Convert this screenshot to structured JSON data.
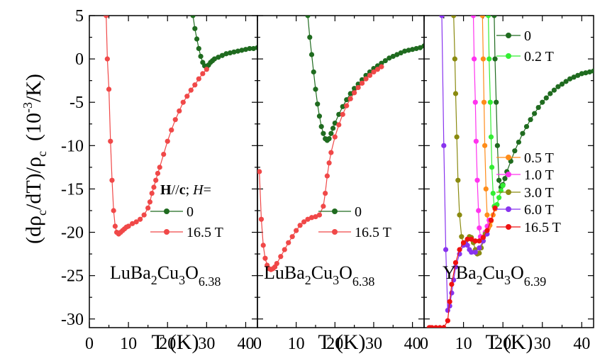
{
  "y_axis_title": {
    "a": "(dρ",
    "b": "c",
    "c": "/dT)/ρ",
    "d": "c",
    "e": "(10",
    "f": "-3",
    "g": "/K)"
  },
  "colors": {
    "dark_green": "#1f6b1f",
    "red": "#f04848",
    "light_green": "#33ee33",
    "orange": "#ff8c1a",
    "magenta": "#ff33ee",
    "olive": "#8a8a10",
    "violet": "#8833ee",
    "bright_red": "#ee1111"
  },
  "chart_data": [
    {
      "type": "line",
      "panel": "left",
      "xlabel": "T (K)",
      "xlim": [
        0,
        43
      ],
      "ylim": [
        -31,
        5
      ],
      "xticks": [
        "0",
        "10",
        "20",
        "30",
        "40"
      ],
      "yticks": [
        "5",
        "0",
        "-5",
        "-10",
        "-15",
        "-20",
        "-25",
        "-30"
      ],
      "legend_title": {
        "H": "H",
        "sep": "//",
        "c": "c",
        "semi": "; ",
        "Hi": "H",
        "eq": "="
      },
      "compound": {
        "base1": "LuBa",
        "s1": "2",
        "base2": "Cu",
        "s2": "3",
        "base3": "O",
        "s3": "6.38"
      },
      "series": [
        {
          "name": "0",
          "color": "#1f6b1f",
          "x": [
            26.5,
            27.0,
            27.5,
            28.0,
            28.5,
            29.0,
            29.5,
            30.0,
            30.5,
            31.0,
            31.5,
            32.0,
            33.0,
            34.0,
            35.0,
            36.0,
            37.0,
            38.0,
            39.0,
            40.0,
            41.0,
            42.0,
            43.0
          ],
          "y": [
            5.0,
            3.5,
            2.3,
            1.2,
            0.3,
            -0.4,
            -0.8,
            -1.0,
            -0.7,
            -0.4,
            -0.2,
            0.0,
            0.2,
            0.4,
            0.6,
            0.7,
            0.8,
            0.9,
            1.0,
            1.1,
            1.2,
            1.2,
            1.3
          ]
        },
        {
          "name": "16.5 T",
          "color": "#f04848",
          "x": [
            4.3,
            4.6,
            5.0,
            5.4,
            5.8,
            6.2,
            6.6,
            7.0,
            7.5,
            8.0,
            8.5,
            9.0,
            9.5,
            10.0,
            11.0,
            12.0,
            13.0,
            14.0,
            15.0,
            15.5,
            16.0,
            16.5,
            17.0,
            17.5,
            18.0,
            19.0,
            20.0,
            21.0,
            22.0,
            23.0,
            24.0,
            25.0,
            26.0,
            27.0,
            28.0,
            29.0,
            30.0
          ],
          "y": [
            5.0,
            0.0,
            -3.5,
            -9.5,
            -14.0,
            -17.5,
            -19.3,
            -20.0,
            -20.2,
            -20.0,
            -19.8,
            -19.6,
            -19.4,
            -19.3,
            -19.0,
            -18.8,
            -18.5,
            -18.0,
            -17.2,
            -16.5,
            -15.5,
            -14.8,
            -14.0,
            -13.2,
            -12.5,
            -11.0,
            -9.5,
            -8.2,
            -7.0,
            -6.0,
            -5.0,
            -4.3,
            -3.6,
            -3.0,
            -2.3,
            -1.7,
            -1.2
          ]
        }
      ]
    },
    {
      "type": "line",
      "panel": "middle",
      "xlabel": "T (K)",
      "xlim": [
        0,
        43
      ],
      "ylim": [
        -31,
        5
      ],
      "xticks": [
        "0",
        "10",
        "20",
        "30",
        "40"
      ],
      "compound": {
        "base1": "LuBa",
        "s1": "2",
        "base2": "Cu",
        "s2": "3",
        "base3": "O",
        "s3": "6.38"
      },
      "series": [
        {
          "name": "0",
          "color": "#1f6b1f",
          "x": [
            13.0,
            13.5,
            14.0,
            14.5,
            15.0,
            15.5,
            16.0,
            16.5,
            17.0,
            17.5,
            18.0,
            18.5,
            19.0,
            19.5,
            20.0,
            21.0,
            22.0,
            23.0,
            24.0,
            25.0,
            26.0,
            27.0,
            28.0,
            29.0,
            30.0,
            31.0,
            32.0,
            33.0,
            34.0,
            35.0,
            36.0,
            37.0,
            38.0,
            39.0,
            40.0,
            41.0,
            42.0,
            43.0
          ],
          "y": [
            5.0,
            2.5,
            0.5,
            -1.5,
            -3.5,
            -5.2,
            -6.6,
            -7.8,
            -8.6,
            -9.2,
            -9.4,
            -9.2,
            -8.6,
            -8.0,
            -7.4,
            -6.4,
            -5.5,
            -4.7,
            -4.0,
            -3.4,
            -2.9,
            -2.4,
            -1.9,
            -1.5,
            -1.1,
            -0.8,
            -0.5,
            -0.2,
            0.1,
            0.3,
            0.5,
            0.7,
            0.9,
            1.0,
            1.1,
            1.2,
            1.3,
            1.5
          ]
        },
        {
          "name": "16.5 T",
          "color": "#f04848",
          "x": [
            0.5,
            1.0,
            1.5,
            2.0,
            2.5,
            3.0,
            3.5,
            4.0,
            4.5,
            5.0,
            6.0,
            7.0,
            8.0,
            9.0,
            10.0,
            11.0,
            12.0,
            13.0,
            14.0,
            15.0,
            16.0,
            17.0,
            17.5,
            18.0,
            18.5,
            19.0,
            20.0,
            21.0,
            22.0,
            23.0,
            24.0,
            25.0,
            26.0,
            27.0,
            28.0,
            29.0,
            30.0,
            31.0,
            32.0
          ],
          "y": [
            -13.0,
            -18.5,
            -21.5,
            -23.0,
            -23.8,
            -24.2,
            -24.3,
            -24.2,
            -24.0,
            -23.6,
            -22.8,
            -22.0,
            -21.2,
            -20.5,
            -19.8,
            -19.2,
            -18.8,
            -18.5,
            -18.3,
            -18.2,
            -18.0,
            -17.0,
            -15.5,
            -13.5,
            -12.0,
            -10.8,
            -9.0,
            -7.6,
            -6.4,
            -5.4,
            -4.6,
            -3.9,
            -3.3,
            -2.8,
            -2.3,
            -1.9,
            -1.5,
            -1.2,
            -0.9
          ]
        }
      ]
    },
    {
      "type": "line",
      "panel": "right",
      "xlabel": "T (K)",
      "xlim": [
        0,
        43
      ],
      "ylim": [
        -31,
        5
      ],
      "xticks": [
        "0",
        "10",
        "20",
        "30",
        "40"
      ],
      "compound": {
        "base1": "YBa",
        "s1": "2",
        "base2": "Cu",
        "s2": "3",
        "base3": "O",
        "s3": "6.39"
      },
      "series": [
        {
          "name": "0",
          "color": "#1f6b1f",
          "x": [
            17.8,
            18.0,
            18.3,
            18.6,
            19.0,
            19.5,
            20.0,
            20.5,
            21.0,
            22.0,
            23.0,
            24.0,
            25.0,
            26.0,
            27.0,
            28.0,
            29.0,
            30.0,
            31.0,
            32.0,
            33.0,
            34.0,
            35.0,
            36.0,
            37.0,
            38.0,
            39.0,
            40.0,
            41.0,
            42.0,
            43.0
          ],
          "y": [
            5.0,
            0.0,
            -5.0,
            -10.0,
            -14.0,
            -14.8,
            -14.5,
            -13.8,
            -13.0,
            -11.8,
            -10.6,
            -9.6,
            -8.6,
            -7.8,
            -7.0,
            -6.3,
            -5.6,
            -5.0,
            -4.5,
            -4.0,
            -3.6,
            -3.2,
            -2.9,
            -2.6,
            -2.3,
            -2.1,
            -1.9,
            -1.7,
            -1.6,
            -1.5,
            -1.4
          ]
        },
        {
          "name": "0.2 T",
          "color": "#33ee33",
          "x": [
            16.3,
            16.5,
            16.8,
            17.0,
            17.2,
            17.5,
            17.8,
            18.0,
            18.5,
            19.0,
            19.5,
            20.0
          ],
          "y": [
            5.0,
            0.0,
            -5.0,
            -9.0,
            -12.5,
            -15.5,
            -17.0,
            -17.2,
            -16.8,
            -16.0,
            -15.2,
            -14.6
          ]
        },
        {
          "name": "0.5 T",
          "color": "#ff8c1a",
          "x": [
            14.8,
            15.0,
            15.2,
            15.4,
            15.7,
            16.0,
            16.3,
            16.7,
            17.0,
            17.5,
            18.0
          ],
          "y": [
            5.0,
            0.0,
            -5.0,
            -10.0,
            -15.0,
            -18.0,
            -19.5,
            -19.2,
            -18.7,
            -18.0,
            -17.3
          ]
        },
        {
          "name": "1.0 T",
          "color": "#ff33ee",
          "x": [
            12.5,
            12.7,
            13.0,
            13.2,
            13.5,
            13.8,
            14.0,
            14.3,
            14.7,
            15.0,
            15.5,
            16.0,
            16.5
          ],
          "y": [
            5.0,
            0.0,
            -5.0,
            -9.5,
            -14.0,
            -17.5,
            -19.5,
            -20.5,
            -20.8,
            -20.6,
            -20.0,
            -19.3,
            -18.6
          ]
        },
        {
          "name": "3.0 T",
          "color": "#8a8a10",
          "x": [
            7.5,
            7.8,
            8.0,
            8.3,
            8.6,
            9.0,
            9.5,
            10.0,
            10.5,
            11.0,
            11.5,
            12.0,
            12.5,
            13.0,
            13.5,
            14.0,
            14.5,
            15.0,
            15.5
          ],
          "y": [
            5.0,
            0.0,
            -4.0,
            -9.0,
            -14.0,
            -18.0,
            -20.5,
            -21.3,
            -21.2,
            -20.8,
            -20.5,
            -20.6,
            -21.2,
            -22.0,
            -22.5,
            -22.4,
            -21.8,
            -21.0,
            -20.2
          ]
        },
        {
          "name": "6.0 T",
          "color": "#8833ee",
          "x": [
            4.5,
            5.0,
            5.5,
            6.0,
            6.5,
            7.0,
            7.5,
            8.0,
            9.0,
            10.0,
            10.5,
            11.0,
            11.5,
            12.0,
            13.0,
            14.0,
            15.0,
            16.0
          ],
          "y": [
            5.0,
            -10.0,
            -22.0,
            -29.0,
            -28.5,
            -27.0,
            -25.5,
            -24.0,
            -22.5,
            -21.5,
            -21.3,
            -21.5,
            -22.0,
            -22.3,
            -22.3,
            -21.8,
            -21.0,
            -20.2
          ]
        },
        {
          "name": "16.5 T",
          "color": "#ee1111",
          "x": [
            1.3,
            1.5,
            2.0,
            3.0,
            4.0,
            5.0,
            6.0,
            6.5,
            7.0,
            8.0,
            9.0,
            10.0,
            11.0,
            12.0,
            13.0,
            14.0,
            15.0,
            16.0,
            17.0,
            18.0
          ],
          "y": [
            -31.0,
            -31.0,
            -31.0,
            -31.0,
            -31.0,
            -31.0,
            -30.2,
            -28.0,
            -26.0,
            -23.5,
            -22.0,
            -21.2,
            -20.8,
            -20.8,
            -21.0,
            -21.0,
            -20.6,
            -19.8,
            -18.6,
            -17.2
          ]
        }
      ]
    }
  ]
}
